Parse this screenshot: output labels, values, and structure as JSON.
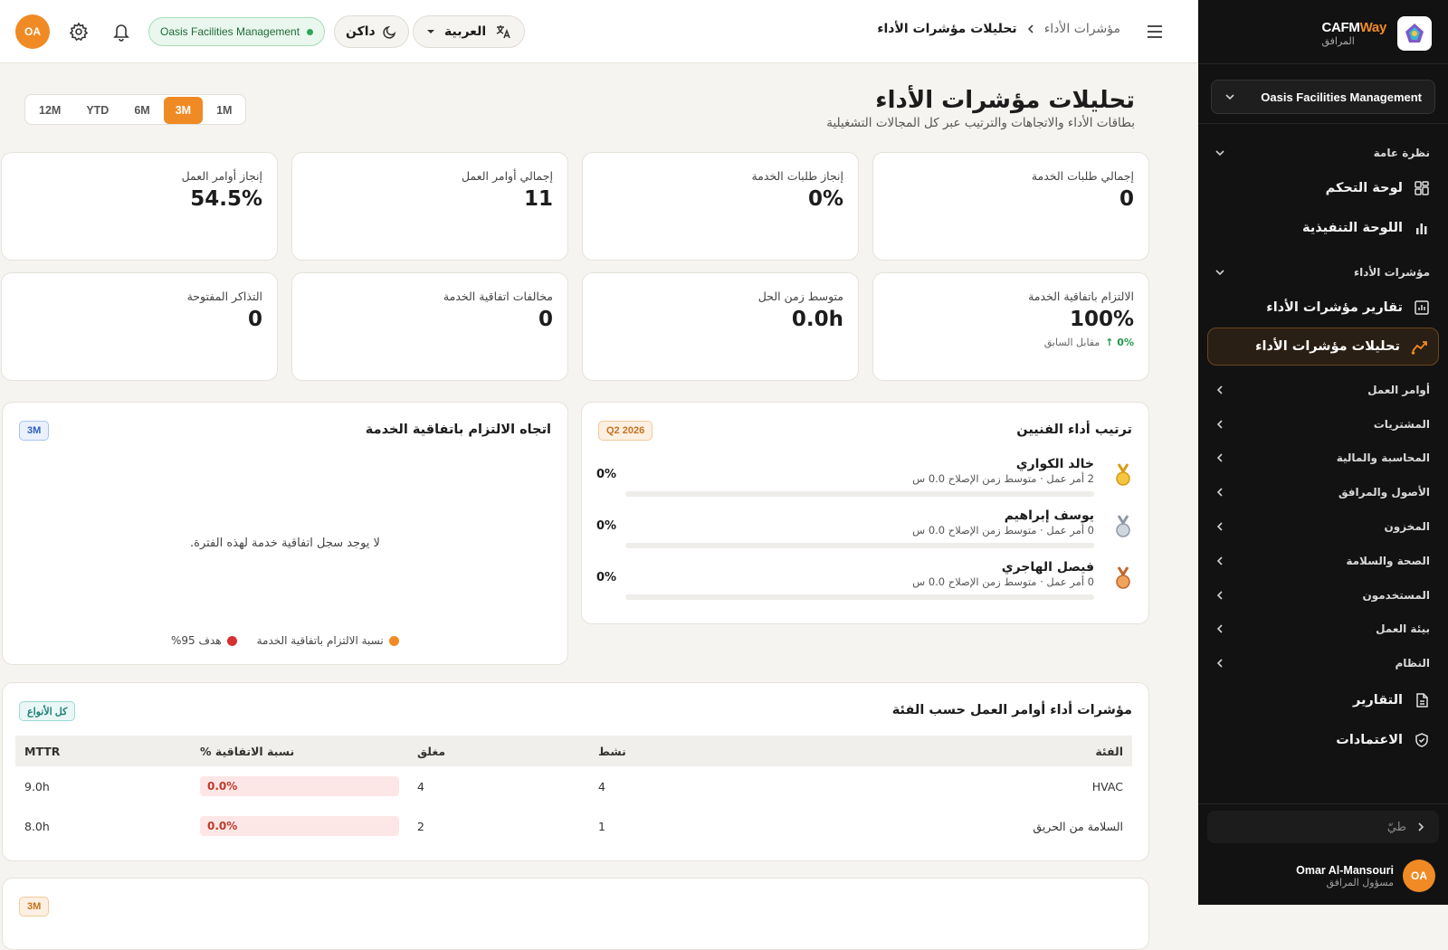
{
  "brand": {
    "name_main": "CAFM",
    "name_accent": "Way",
    "subtitle": "المرافق"
  },
  "sidebar": {
    "org_select": "Oasis Facilities Management",
    "group_overview": "نظرة عامة",
    "dashboard": "لوحة التحكم",
    "executive": "اللوحة التنفيذية",
    "group_kpi": "مؤشرات الأداء",
    "kpi_reports": "تقارير مؤشرات الأداء",
    "kpi_analytics": "تحليلات مؤشرات الأداء",
    "categories": [
      "أوامر العمل",
      "المشتريات",
      "المحاسبة والمالية",
      "الأصول والمرافق",
      "المخزون",
      "الصحة والسلامة",
      "المستخدمون",
      "بيئة العمل",
      "النظام"
    ],
    "reports": "التقارير",
    "approvals": "الاعتمادات",
    "collapse_label": "طيّ",
    "user_initials": "OA",
    "user_name": "Omar Al-Mansouri",
    "user_role": "مسؤول المرافق"
  },
  "topbar": {
    "crumb_parent": "مؤشرات الأداء",
    "crumb_current": "تحليلات مؤشرات الأداء",
    "language": "العربية",
    "theme": "داكن",
    "org_badge": "Oasis Facilities Management",
    "avatar_initials": "OA"
  },
  "page": {
    "title": "تحليلات مؤشرات الأداء",
    "subtitle": "بطاقات الأداء والاتجاهات والترتيب عبر كل المجالات التشغيلية",
    "periods": [
      "12M",
      "YTD",
      "6M",
      "3M",
      "1M"
    ],
    "selected_period": "3M"
  },
  "kpis_row1": [
    {
      "label": "إجمالي طلبات الخدمة",
      "value": "0"
    },
    {
      "label": "إنجاز طلبات الخدمة",
      "value": "0%"
    },
    {
      "label": "إجمالي أوامر العمل",
      "value": "11"
    },
    {
      "label": "إنجاز أوامر العمل",
      "value": "54.5%"
    }
  ],
  "kpis_row2": [
    {
      "label": "الالتزام باتفاقية الخدمة",
      "value": "100%",
      "delta": "↑ 0%",
      "delta_label": "مقابل السابق"
    },
    {
      "label": "متوسط زمن الحل",
      "value": "0.0h"
    },
    {
      "label": "مخالفات اتفاقية الخدمة",
      "value": "0"
    },
    {
      "label": "التذاكر المفتوحة",
      "value": "0"
    }
  ],
  "ranking": {
    "title": "ترتيب أداء الفنيين",
    "tag": "Q2 2026",
    "technicians": [
      {
        "name": "خالد الكواري",
        "meta": "2 أمر عمل · متوسط زمن الإصلاح 0.0 س",
        "pct": "0%",
        "medal": "gold"
      },
      {
        "name": "يوسف إبراهيم",
        "meta": "0 أمر عمل · متوسط زمن الإصلاح 0.0 س",
        "pct": "0%",
        "medal": "silver"
      },
      {
        "name": "فيصل الهاجري",
        "meta": "0 أمر عمل · متوسط زمن الإصلاح 0.0 س",
        "pct": "0%",
        "medal": "bronze"
      }
    ]
  },
  "sla_trend": {
    "title": "اتجاه الالتزام باتفاقية الخدمة",
    "tag": "3M",
    "empty": "لا يوجد سجل اتفاقية خدمة لهذه الفترة.",
    "legend_series": "نسبة الالتزام باتفاقية الخدمة",
    "legend_target": "هدف 95%",
    "series_color": "#f08a24",
    "target_color": "#d63031"
  },
  "category_table": {
    "title": "مؤشرات أداء أوامر العمل حسب الفئة",
    "tag": "كل الأنواع",
    "headers": [
      "الفئة",
      "نشط",
      "مغلق",
      "نسبة الاتفاقية %",
      "MTTR"
    ],
    "rows": [
      [
        "HVAC",
        "4",
        "4",
        "0.0%",
        "9.0h"
      ],
      [
        "السلامة من الحريق",
        "1",
        "2",
        "0.0%",
        "8.0h"
      ]
    ]
  },
  "next_section": {
    "tag": "3M"
  },
  "colors": {
    "accent": "#f08a24",
    "sidebar_bg": "#121212",
    "page_bg": "#f6f4f0"
  }
}
